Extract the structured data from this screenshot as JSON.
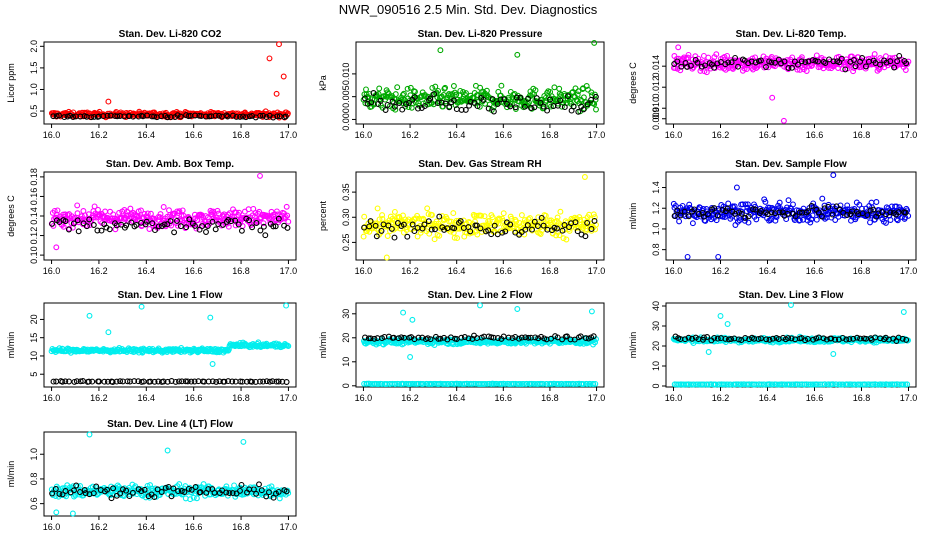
{
  "title": "NWR_090516  2.5 Min. Std. Dev. Diagnostics",
  "chart_data": [
    {
      "type": "scatter",
      "title": "Stan. Dev. Li-820 CO2",
      "ylabel": "Licor ppm",
      "xlim": [
        16.0,
        17.0
      ],
      "ylim": [
        0.2,
        2.1
      ],
      "xticks": [
        "16.0",
        "16.2",
        "16.4",
        "16.6",
        "16.8",
        "17.0"
      ],
      "yticks": [
        "0.5",
        "1.0",
        "1.5",
        "2.0"
      ],
      "colors": [
        "#ff0000",
        "#000000"
      ],
      "series": [
        {
          "name": "main",
          "color": "#ff0000",
          "center": 0.42,
          "spread": 0.06,
          "outliers": [
            [
              16.24,
              0.72
            ],
            [
              16.92,
              1.72
            ],
            [
              16.96,
              2.05
            ],
            [
              16.95,
              0.9
            ],
            [
              16.98,
              1.3
            ]
          ]
        },
        {
          "name": "ref",
          "color": "#000000",
          "center": 0.38,
          "spread": 0.03,
          "outliers": []
        }
      ]
    },
    {
      "type": "scatter",
      "title": "Stan. Dev. Li-820 Pressure",
      "ylabel": "kPa",
      "xlim": [
        16.0,
        17.0
      ],
      "ylim": [
        -0.001,
        0.017
      ],
      "xticks": [
        "16.0",
        "16.2",
        "16.4",
        "16.6",
        "16.8",
        "17.0"
      ],
      "yticks": [
        "0.000",
        "0.005",
        "0.010"
      ],
      "colors": [
        "#00aa00",
        "#000000"
      ],
      "series": [
        {
          "name": "main",
          "color": "#00aa00",
          "center": 0.0045,
          "spread": 0.0025,
          "outliers": [
            [
              16.33,
              0.0152
            ],
            [
              16.66,
              0.0142
            ],
            [
              16.99,
              0.0168
            ]
          ]
        },
        {
          "name": "ref",
          "color": "#000000",
          "center": 0.0035,
          "spread": 0.002,
          "outliers": []
        }
      ]
    },
    {
      "type": "scatter",
      "title": "Stan. Dev. Li-820 Temp.",
      "ylabel": "degrees C",
      "xlim": [
        16.0,
        17.0
      ],
      "ylim": [
        0.0085,
        0.0163
      ],
      "xticks": [
        "16.0",
        "16.2",
        "16.4",
        "16.6",
        "16.8",
        "17.0"
      ],
      "yticks": [
        "0.009",
        "0.010",
        "0.012",
        "0.014"
      ],
      "colors": [
        "#ff00ff",
        "#000000"
      ],
      "series": [
        {
          "name": "main",
          "color": "#ff00ff",
          "center": 0.0143,
          "spread": 0.0008,
          "outliers": [
            [
              16.47,
              0.0088
            ],
            [
              16.02,
              0.0158
            ],
            [
              16.42,
              0.011
            ]
          ]
        },
        {
          "name": "ref",
          "color": "#000000",
          "center": 0.0143,
          "spread": 0.0005,
          "outliers": []
        }
      ]
    },
    {
      "type": "scatter",
      "title": "Stan. Dev. Amb. Box Temp.",
      "ylabel": "degrees C",
      "xlim": [
        16.0,
        17.0
      ],
      "ylim": [
        0.095,
        0.185
      ],
      "xticks": [
        "16.0",
        "16.2",
        "16.4",
        "16.6",
        "16.8",
        "17.0"
      ],
      "yticks": [
        "0.10",
        "0.12",
        "0.14",
        "0.16",
        "0.18"
      ],
      "colors": [
        "#ff00ff",
        "#000000"
      ],
      "series": [
        {
          "name": "main",
          "color": "#ff00ff",
          "center": 0.138,
          "spread": 0.01,
          "outliers": [
            [
              16.88,
              0.181
            ],
            [
              16.02,
              0.108
            ]
          ]
        },
        {
          "name": "ref",
          "color": "#000000",
          "center": 0.13,
          "spread": 0.008,
          "outliers": []
        }
      ]
    },
    {
      "type": "scatter",
      "title": "Stan. Dev. Gas Stream RH",
      "ylabel": "percent",
      "xlim": [
        16.0,
        17.0
      ],
      "ylim": [
        0.215,
        0.39
      ],
      "xticks": [
        "16.0",
        "16.2",
        "16.4",
        "16.6",
        "16.8",
        "17.0"
      ],
      "yticks": [
        "0.25",
        "0.30",
        "0.35"
      ],
      "colors": [
        "#ffff00",
        "#000000"
      ],
      "series": [
        {
          "name": "main",
          "color": "#ffff00",
          "center": 0.285,
          "spread": 0.025,
          "outliers": [
            [
              16.1,
              0.22
            ],
            [
              16.95,
              0.38
            ]
          ]
        },
        {
          "name": "ref",
          "color": "#000000",
          "center": 0.28,
          "spread": 0.02,
          "outliers": []
        }
      ]
    },
    {
      "type": "scatter",
      "title": "Stan. Dev. Sample Flow",
      "ylabel": "ml/min",
      "xlim": [
        16.0,
        17.0
      ],
      "ylim": [
        0.7,
        1.55
      ],
      "xticks": [
        "16.0",
        "16.2",
        "16.4",
        "16.6",
        "16.8",
        "17.0"
      ],
      "yticks": [
        "0.8",
        "1.0",
        "1.2",
        "1.4"
      ],
      "colors": [
        "#0000ee",
        "#000000"
      ],
      "series": [
        {
          "name": "main",
          "color": "#0000ee",
          "center": 1.16,
          "spread": 0.1,
          "outliers": [
            [
              16.06,
              0.73
            ],
            [
              16.19,
              0.73
            ],
            [
              16.68,
              1.52
            ],
            [
              16.27,
              1.4
            ]
          ]
        },
        {
          "name": "ref",
          "color": "#000000",
          "center": 1.16,
          "spread": 0.06,
          "outliers": []
        }
      ]
    },
    {
      "type": "scatter",
      "title": "Stan. Dev. Line 1 Flow",
      "ylabel": "ml/min",
      "xlim": [
        16.0,
        17.0
      ],
      "ylim": [
        1.5,
        24.5
      ],
      "xticks": [
        "16.0",
        "16.2",
        "16.4",
        "16.6",
        "16.8",
        "17.0"
      ],
      "yticks": [
        "5",
        "10",
        "15",
        "20"
      ],
      "colors": [
        "#00eeee",
        "#000000"
      ],
      "series": [
        {
          "name": "main",
          "color": "#00eeee",
          "center": 11.5,
          "spread": 0.6,
          "trend": 1.4,
          "outliers": [
            [
              16.16,
              21.0
            ],
            [
              16.38,
              23.5
            ],
            [
              16.67,
              20.5
            ],
            [
              16.99,
              23.8
            ],
            [
              16.24,
              16.5
            ],
            [
              16.68,
              7.8
            ]
          ]
        },
        {
          "name": "ref",
          "color": "#000000",
          "center": 3.0,
          "spread": 0.15,
          "outliers": []
        }
      ]
    },
    {
      "type": "scatter",
      "title": "Stan. Dev. Line 2 Flow",
      "ylabel": "ml/min",
      "xlim": [
        16.0,
        17.0
      ],
      "ylim": [
        -0.5,
        34.5
      ],
      "xticks": [
        "16.0",
        "16.2",
        "16.4",
        "16.6",
        "16.8",
        "17.0"
      ],
      "yticks": [
        "0",
        "10",
        "20",
        "30"
      ],
      "colors": [
        "#00eeee",
        "#000000"
      ],
      "series": [
        {
          "name": "main",
          "color": "#00eeee",
          "center": 18.5,
          "spread": 1.2,
          "outliers": [
            [
              16.17,
              30.5
            ],
            [
              16.21,
              27.5
            ],
            [
              16.5,
              33.5
            ],
            [
              16.66,
              32.0
            ],
            [
              16.98,
              31.0
            ],
            [
              16.2,
              12.0
            ]
          ]
        },
        {
          "name": "ref",
          "color": "#000000",
          "center": 20.0,
          "spread": 0.8,
          "outliers": []
        },
        {
          "name": "base",
          "color": "#00eeee",
          "center": 0.8,
          "spread": 0.1,
          "outliers": []
        }
      ]
    },
    {
      "type": "scatter",
      "title": "Stan. Dev. Line 3 Flow",
      "ylabel": "ml/min",
      "xlim": [
        16.0,
        17.0
      ],
      "ylim": [
        -0.5,
        41.5
      ],
      "xticks": [
        "16.0",
        "16.2",
        "16.4",
        "16.6",
        "16.8",
        "17.0"
      ],
      "yticks": [
        "0",
        "10",
        "20",
        "30",
        "40"
      ],
      "colors": [
        "#00eeee",
        "#000000"
      ],
      "series": [
        {
          "name": "main",
          "color": "#00eeee",
          "center": 23.0,
          "spread": 1.2,
          "outliers": [
            [
              16.2,
              35.0
            ],
            [
              16.23,
              31.0
            ],
            [
              16.5,
              40.5
            ],
            [
              16.98,
              37.0
            ],
            [
              16.68,
              16.0
            ],
            [
              16.15,
              17.0
            ]
          ]
        },
        {
          "name": "ref",
          "color": "#000000",
          "center": 23.5,
          "spread": 0.9,
          "outliers": []
        },
        {
          "name": "base",
          "color": "#00eeee",
          "center": 0.8,
          "spread": 0.1,
          "outliers": []
        }
      ]
    },
    {
      "type": "scatter",
      "title": "Stan. Dev. Line 4 (LT) Flow",
      "ylabel": "ml/min",
      "xlim": [
        16.0,
        17.0
      ],
      "ylim": [
        0.5,
        1.18
      ],
      "xticks": [
        "16.0",
        "16.2",
        "16.4",
        "16.6",
        "16.8",
        "17.0"
      ],
      "yticks": [
        "0.6",
        "0.8",
        "1.0"
      ],
      "colors": [
        "#00eeee",
        "#000000"
      ],
      "series": [
        {
          "name": "main",
          "color": "#00eeee",
          "center": 0.7,
          "spread": 0.055,
          "outliers": [
            [
              16.16,
              1.16
            ],
            [
              16.49,
              1.03
            ],
            [
              16.81,
              1.1
            ],
            [
              16.02,
              0.53
            ],
            [
              16.09,
              0.52
            ]
          ]
        },
        {
          "name": "ref",
          "color": "#000000",
          "center": 0.7,
          "spread": 0.05,
          "outliers": []
        }
      ]
    }
  ]
}
